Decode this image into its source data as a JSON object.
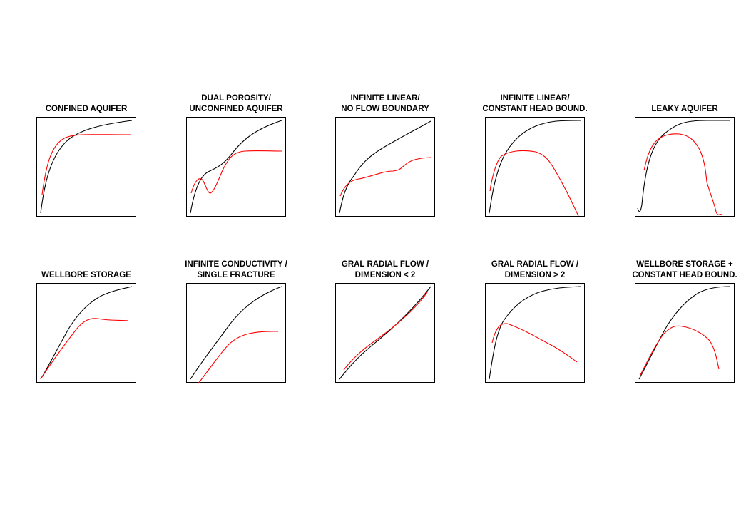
{
  "colors": {
    "pressure_curve": "#000000",
    "derivative_curve": "#ff0000"
  },
  "panels": [
    {
      "title_lines": [
        "CONFINED AQUIFER"
      ]
    },
    {
      "title_lines": [
        "DUAL POROSITY/",
        "UNCONFINED AQUIFER"
      ]
    },
    {
      "title_lines": [
        "INFINITE LINEAR/",
        "NO FLOW BOUNDARY"
      ]
    },
    {
      "title_lines": [
        "INFINITE LINEAR/",
        "CONSTANT HEAD BOUND."
      ]
    },
    {
      "title_lines": [
        "LEAKY AQUIFER"
      ]
    },
    {
      "title_lines": [
        "WELLBORE STORAGE"
      ]
    },
    {
      "title_lines": [
        "INFINITE CONDUCTIVITY /",
        "SINGLE FRACTURE"
      ]
    },
    {
      "title_lines": [
        "GRAL RADIAL FLOW /",
        "DIMENSION < 2"
      ]
    },
    {
      "title_lines": [
        "GRAL RADIAL FLOW /",
        "DIMENSION > 2"
      ]
    },
    {
      "title_lines": [
        "WELLBORE STORAGE +",
        "CONSTANT HEAD BOUND."
      ]
    }
  ]
}
